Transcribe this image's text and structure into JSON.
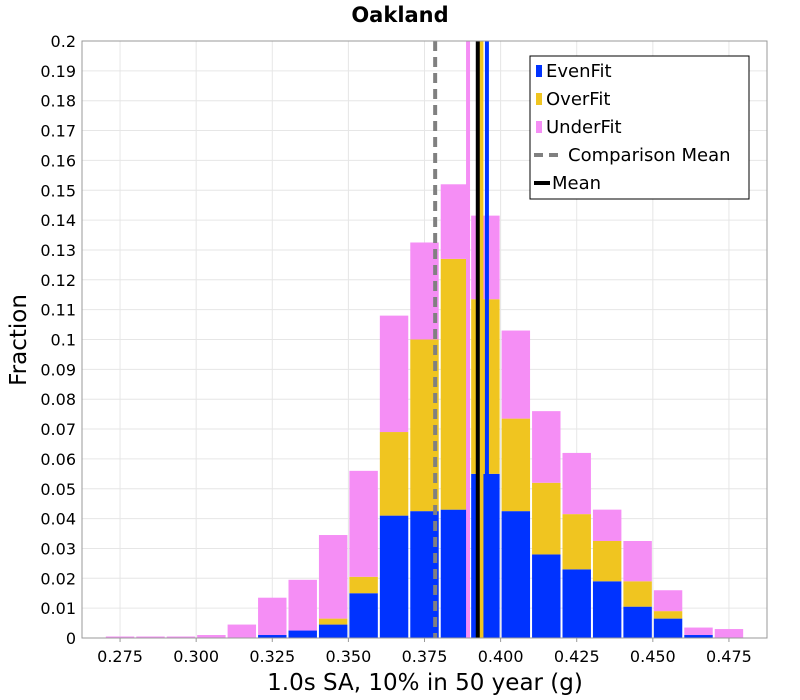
{
  "chart_data": {
    "type": "bar",
    "stacked": true,
    "title": "Oakland",
    "xlabel": "1.0s SA, 10% in 50 year (g)",
    "ylabel": "Fraction",
    "xlim": [
      0.2625,
      0.4875
    ],
    "ylim": [
      0,
      0.2
    ],
    "grid": true,
    "legend_position": "top-right",
    "x_ticks": [
      "0.275",
      "0.300",
      "0.325",
      "0.350",
      "0.375",
      "0.400",
      "0.425",
      "0.450",
      "0.475"
    ],
    "y_ticks": [
      "0",
      "0.01",
      "0.02",
      "0.03",
      "0.04",
      "0.05",
      "0.06",
      "0.07",
      "0.08",
      "0.09",
      "0.1",
      "0.11",
      "0.12",
      "0.13",
      "0.14",
      "0.15",
      "0.16",
      "0.17",
      "0.18",
      "0.19",
      "0.2"
    ],
    "bin_width": 0.01,
    "bins": [
      0.275,
      0.285,
      0.295,
      0.305,
      0.315,
      0.325,
      0.335,
      0.345,
      0.355,
      0.365,
      0.375,
      0.385,
      0.395,
      0.405,
      0.415,
      0.425,
      0.435,
      0.445,
      0.455,
      0.465,
      0.475
    ],
    "series": [
      {
        "name": "EvenFit",
        "color": "#0033ff",
        "values": [
          0,
          0,
          0,
          0,
          0,
          0.001,
          0.0025,
          0.0045,
          0.015,
          0.041,
          0.0425,
          0.043,
          0.055,
          0.0425,
          0.028,
          0.023,
          0.019,
          0.0105,
          0.0065,
          0.001,
          0
        ]
      },
      {
        "name": "OverFit",
        "color": "#f0c520",
        "values": [
          0,
          0,
          0,
          0,
          0,
          0,
          0,
          0.002,
          0.0055,
          0.028,
          0.0575,
          0.084,
          0.0585,
          0.031,
          0.024,
          0.0185,
          0.0135,
          0.0085,
          0.0025,
          0,
          0
        ]
      },
      {
        "name": "UnderFit",
        "color": "#f58ef5",
        "values": [
          0.0005,
          0.0005,
          0.0005,
          0.001,
          0.0045,
          0.0125,
          0.017,
          0.028,
          0.0355,
          0.039,
          0.0325,
          0.025,
          0.028,
          0.0295,
          0.024,
          0.0205,
          0.0105,
          0.0135,
          0.007,
          0.0025,
          0.003
        ]
      }
    ],
    "reference_lines": [
      {
        "name": "Comparison Mean",
        "x": 0.3785,
        "color": "#808080",
        "style": "dashed"
      },
      {
        "name": "Mean",
        "x": 0.3925,
        "color": "#000000",
        "style": "solid"
      }
    ],
    "series_mean_lines": [
      {
        "series": "UnderFit",
        "x": 0.3893,
        "color": "#f58ef5"
      },
      {
        "series": "OverFit",
        "x": 0.3937,
        "color": "#f0c520"
      },
      {
        "series": "EvenFit",
        "x": 0.3955,
        "color": "#0033ff"
      }
    ]
  }
}
